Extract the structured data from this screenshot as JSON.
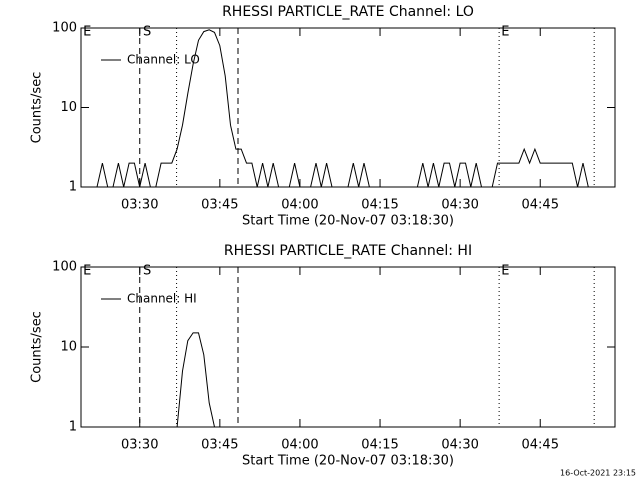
{
  "chart_data": [
    {
      "type": "line",
      "title": "RHESSI PARTICLE_RATE Channel: LO",
      "xlabel": "Start Time (20-Nov-07 03:18:30)",
      "ylabel": "Counts/sec",
      "x": [
        19,
        20,
        21,
        22,
        23,
        24,
        25,
        26,
        27,
        28,
        29,
        30,
        31,
        32,
        33,
        34,
        35,
        36,
        37,
        38,
        39,
        40,
        41,
        42,
        43,
        44,
        45,
        46,
        47,
        48,
        49,
        50,
        51,
        52,
        53,
        54,
        55,
        56,
        57,
        58,
        59,
        60,
        61,
        62,
        63,
        64,
        65,
        66,
        67,
        68,
        69,
        70,
        71,
        72,
        73,
        74,
        75,
        76,
        77,
        78,
        79,
        80,
        81,
        82,
        83,
        84,
        85,
        86,
        87,
        88,
        89,
        90,
        91,
        92,
        93,
        94,
        95,
        96,
        97,
        98,
        99,
        100,
        101,
        102,
        103,
        104,
        105,
        106,
        107,
        108,
        109,
        110,
        111,
        112,
        113,
        114,
        115,
        116,
        117
      ],
      "series": [
        {
          "name": "Channel: LO",
          "color": "#000000",
          "values": [
            1,
            1,
            1,
            1,
            2,
            1,
            1,
            2,
            1,
            2,
            2,
            1,
            2,
            1,
            1,
            2,
            2,
            2,
            3,
            6,
            15,
            35,
            70,
            90,
            95,
            88,
            60,
            25,
            6,
            3,
            3,
            2,
            2,
            1,
            2,
            1,
            2,
            1,
            1,
            1,
            2,
            1,
            1,
            1,
            2,
            1,
            2,
            1,
            1,
            1,
            1,
            2,
            1,
            2,
            1,
            1,
            1,
            1,
            1,
            1,
            1,
            1,
            1,
            1,
            2,
            1,
            2,
            1,
            2,
            2,
            1,
            2,
            2,
            1,
            2,
            1,
            1,
            1,
            2,
            2,
            2,
            2,
            2,
            3,
            2,
            3,
            2,
            2,
            2,
            2,
            2,
            2,
            2,
            1,
            2,
            1,
            1,
            1,
            1
          ]
        }
      ],
      "xlim": [
        19,
        119
      ],
      "ylim": [
        1,
        100
      ],
      "log_y": true,
      "xticks": [
        {
          "value": 30,
          "label": "03:30"
        },
        {
          "value": 45,
          "label": "03:45"
        },
        {
          "value": 60,
          "label": "04:00"
        },
        {
          "value": 75,
          "label": "04:15"
        },
        {
          "value": 90,
          "label": "04:30"
        },
        {
          "value": 105,
          "label": "04:45"
        }
      ],
      "yticks": [
        1,
        10,
        100
      ],
      "vlines": [
        {
          "x": 30,
          "style": "dashed"
        },
        {
          "x": 36.9,
          "style": "dotted"
        },
        {
          "x": 48.4,
          "style": "dashed"
        },
        {
          "x": 97.3,
          "style": "dotted"
        },
        {
          "x": 115.1,
          "style": "dotted"
        }
      ],
      "flags": [
        {
          "x": 19.4,
          "label": "E"
        },
        {
          "x": 30.6,
          "label": "S"
        },
        {
          "x": 97.7,
          "label": "E"
        }
      ],
      "legend": "upper left"
    },
    {
      "type": "line",
      "title": "RHESSI PARTICLE_RATE Channel: HI",
      "xlabel": "Start Time (20-Nov-07 03:18:30)",
      "ylabel": "Counts/sec",
      "x": [
        37,
        38,
        39,
        40,
        41,
        42,
        43,
        44
      ],
      "series": [
        {
          "name": "Channel: HI",
          "color": "#000000",
          "values": [
            1,
            5,
            12,
            15,
            15,
            8,
            2,
            1
          ]
        }
      ],
      "xlim": [
        19,
        119
      ],
      "ylim": [
        1,
        100
      ],
      "log_y": true,
      "xticks": [
        {
          "value": 30,
          "label": "03:30"
        },
        {
          "value": 45,
          "label": "03:45"
        },
        {
          "value": 60,
          "label": "04:00"
        },
        {
          "value": 75,
          "label": "04:15"
        },
        {
          "value": 90,
          "label": "04:30"
        },
        {
          "value": 105,
          "label": "04:45"
        }
      ],
      "yticks": [
        1,
        10,
        100
      ],
      "vlines": [
        {
          "x": 30,
          "style": "dashed"
        },
        {
          "x": 36.9,
          "style": "dotted"
        },
        {
          "x": 48.4,
          "style": "dashed"
        },
        {
          "x": 97.3,
          "style": "dotted"
        },
        {
          "x": 115.1,
          "style": "dotted"
        }
      ],
      "flags": [
        {
          "x": 19.4,
          "label": "E"
        },
        {
          "x": 30.6,
          "label": "S"
        },
        {
          "x": 97.7,
          "label": "E"
        }
      ],
      "legend": "upper left"
    }
  ],
  "footer": "16-Oct-2021 23:15"
}
